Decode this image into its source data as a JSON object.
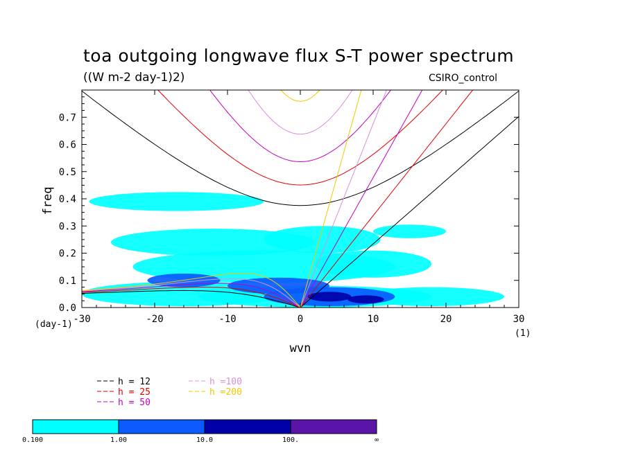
{
  "chart_data": {
    "type": "contour",
    "title": "toa outgoing longwave flux S-T power spectrum",
    "units": "((W m-2 day-1)2)",
    "model": "CSIRO_control",
    "xlabel": "wvn",
    "ylabel": "freq",
    "x_unit": "(1)",
    "y_unit": "(day-1)",
    "xlim": [
      -30,
      30
    ],
    "ylim": [
      0,
      0.8
    ],
    "xticks": [
      -30,
      -20,
      -10,
      0,
      10,
      20,
      30
    ],
    "yticks": [
      0.0,
      0.1,
      0.2,
      0.3,
      0.4,
      0.5,
      0.6,
      0.7
    ],
    "ytick_labels": [
      "0.0",
      "0.1",
      "0.2",
      "0.3",
      "0.4",
      "0.5",
      "0.6",
      "0.7"
    ],
    "equivalent_depths": [
      {
        "h": 12,
        "label": "h = 12",
        "color": "#000000"
      },
      {
        "h": 25,
        "label": "h = 25",
        "color": "#e00000"
      },
      {
        "h": 50,
        "label": "h = 50",
        "color": "#c000c0"
      },
      {
        "h": 100,
        "label": "h =100",
        "color": "#d890d8"
      },
      {
        "h": 200,
        "label": "h =200",
        "color": "#f0c800"
      }
    ],
    "colorbar": {
      "labels": [
        "0.100",
        "1.00",
        "10.0",
        "100.",
        "∞"
      ],
      "colors": [
        "#00ffff",
        "#0a5aff",
        "#0000a8",
        "#5a14a8"
      ]
    },
    "power_regions": [
      {
        "level": 0,
        "x": 2,
        "y": 0.04,
        "rx": 16,
        "ry": 0.04
      },
      {
        "level": 0,
        "x": -16,
        "y": 0.05,
        "rx": 14,
        "ry": 0.045
      },
      {
        "level": 0,
        "x": 18,
        "y": 0.04,
        "rx": 10,
        "ry": 0.035
      },
      {
        "level": 0,
        "x": -5,
        "y": 0.15,
        "rx": 18,
        "ry": 0.06
      },
      {
        "level": 0,
        "x": -12,
        "y": 0.24,
        "rx": 14,
        "ry": 0.05
      },
      {
        "level": 0,
        "x": 3,
        "y": 0.25,
        "rx": 8,
        "ry": 0.05
      },
      {
        "level": 0,
        "x": 10,
        "y": 0.16,
        "rx": 8,
        "ry": 0.05
      },
      {
        "level": 0,
        "x": -17,
        "y": 0.39,
        "rx": 12,
        "ry": 0.035
      },
      {
        "level": 0,
        "x": 15,
        "y": 0.28,
        "rx": 5,
        "ry": 0.025
      },
      {
        "level": 1,
        "x": 4,
        "y": 0.04,
        "rx": 9,
        "ry": 0.035
      },
      {
        "level": 1,
        "x": -3,
        "y": 0.08,
        "rx": 7,
        "ry": 0.03
      },
      {
        "level": 1,
        "x": -16,
        "y": 0.1,
        "rx": 5,
        "ry": 0.025
      },
      {
        "level": 2,
        "x": 4,
        "y": 0.04,
        "rx": 3,
        "ry": 0.018
      },
      {
        "level": 2,
        "x": 9,
        "y": 0.03,
        "rx": 2.5,
        "ry": 0.015
      }
    ]
  }
}
